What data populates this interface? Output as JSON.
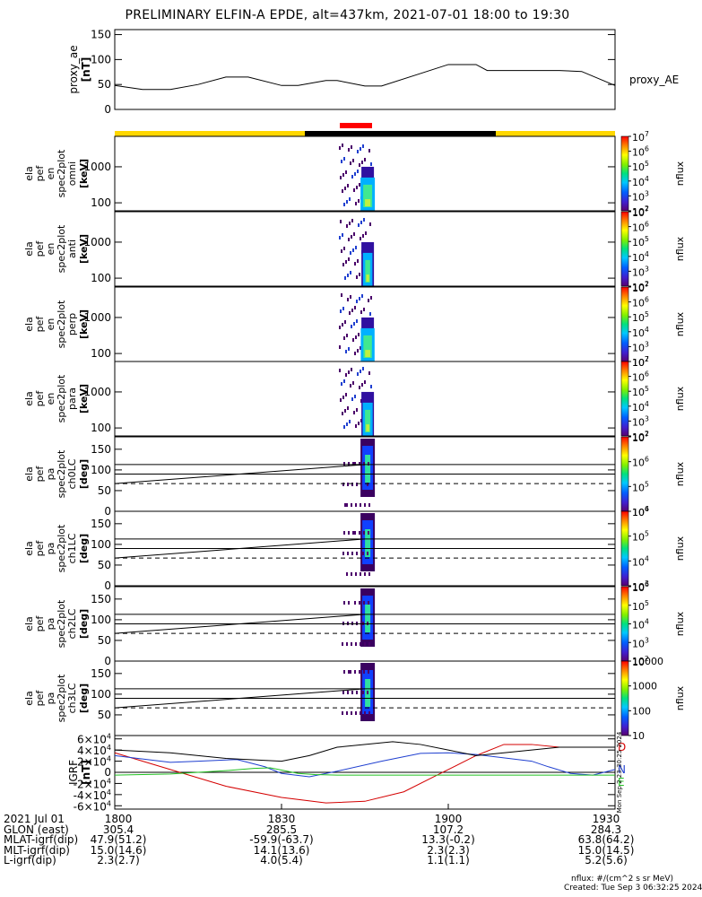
{
  "title": "PRELIMINARY ELFIN-A EPDE, alt=437km, 2021-07-01 18:00 to 19:30",
  "colors": {
    "sci_zone_bar": "#ffd700",
    "eclipse_bar": "#000000",
    "burst_bar": "#ff0000",
    "grf_d": "#d40000",
    "grf_n": "#1f3fd0",
    "grf_e": "#20c020"
  },
  "chart_data": [
    {
      "type": "line",
      "panel": "proxy_ae",
      "ylabel": [
        "proxy_ae",
        "[nT]"
      ],
      "ylim": [
        0,
        160
      ],
      "yticks": [
        0,
        50,
        100,
        150
      ],
      "series": [
        {
          "name": "proxy_AE",
          "x": [
            0,
            5,
            10,
            15,
            20,
            24,
            30,
            33,
            38,
            40,
            45,
            48,
            55,
            60,
            65,
            67,
            73,
            75,
            80,
            84,
            90
          ],
          "values": [
            48,
            40,
            40,
            50,
            65,
            65,
            48,
            48,
            58,
            58,
            47,
            47,
            72,
            90,
            90,
            78,
            78,
            78,
            78,
            76,
            48
          ]
        }
      ]
    },
    {
      "type": "heatmap",
      "panel": "spec2plot_omni",
      "ylabel": [
        "ela",
        "pef",
        "en",
        "spec2plot",
        "omni",
        "[keV]"
      ],
      "yscale": "log",
      "ylim": [
        60,
        7000
      ],
      "yticks": [
        "100",
        "1000"
      ],
      "zlabel": "nflux",
      "zlim": [
        "10^2",
        "10^7"
      ]
    },
    {
      "type": "heatmap",
      "panel": "spec2plot_anti",
      "ylabel": [
        "ela",
        "pef",
        "en",
        "spec2plot",
        "anti",
        "[keV]"
      ],
      "yscale": "log",
      "ylim": [
        60,
        7000
      ],
      "yticks": [
        "100",
        "1000"
      ],
      "zlabel": "nflux",
      "zlim": [
        "10^2",
        "10^7"
      ]
    },
    {
      "type": "heatmap",
      "panel": "spec2plot_perp",
      "ylabel": [
        "ela",
        "pef",
        "en",
        "spec2plot",
        "perp",
        "[keV]"
      ],
      "yscale": "log",
      "ylim": [
        60,
        7000
      ],
      "yticks": [
        "100",
        "1000"
      ],
      "zlabel": "nflux",
      "zlim": [
        "10^2",
        "10^7"
      ]
    },
    {
      "type": "heatmap",
      "panel": "spec2plot_para",
      "ylabel": [
        "ela",
        "pef",
        "en",
        "spec2plot",
        "para",
        "[keV]"
      ],
      "yscale": "log",
      "ylim": [
        60,
        7000
      ],
      "yticks": [
        "100",
        "1000"
      ],
      "zlabel": "nflux",
      "zlim": [
        "10^2",
        "10^7"
      ]
    },
    {
      "type": "heatmap",
      "panel": "spec2plot_ch0LC",
      "ylabel": [
        "ela",
        "pef",
        "pa",
        "spec2plot",
        "ch0LC",
        "[deg]"
      ],
      "ylim": [
        0,
        180
      ],
      "yticks": [
        "0",
        "50",
        "100",
        "150"
      ],
      "zlabel": "nflux",
      "zlim": [
        "10^4",
        "10^7"
      ]
    },
    {
      "type": "heatmap",
      "panel": "spec2plot_ch1LC",
      "ylabel": [
        "ela",
        "pef",
        "pa",
        "spec2plot",
        "ch1LC",
        "[deg]"
      ],
      "ylim": [
        0,
        180
      ],
      "yticks": [
        "0",
        "50",
        "100",
        "150"
      ],
      "zlabel": "nflux",
      "zlim": [
        "10^3",
        "10^6"
      ]
    },
    {
      "type": "heatmap",
      "panel": "spec2plot_ch2LC",
      "ylabel": [
        "ela",
        "pef",
        "pa",
        "spec2plot",
        "ch2LC",
        "[deg]"
      ],
      "ylim": [
        0,
        180
      ],
      "yticks": [
        "0",
        "50",
        "100",
        "150"
      ],
      "zlabel": "nflux",
      "zlim": [
        "10^2",
        "10^6"
      ]
    },
    {
      "type": "heatmap",
      "panel": "spec2plot_ch3LC",
      "ylabel": [
        "ela",
        "pef",
        "pa",
        "spec2plot",
        "ch3LC",
        "[deg]"
      ],
      "ylim": [
        0,
        180
      ],
      "yticks": [
        "50",
        "100",
        "150"
      ],
      "zlabel": "nflux",
      "zlim": [
        10,
        10000
      ]
    },
    {
      "type": "line",
      "panel": "IGRF",
      "ylabel": [
        "IGRF",
        "[nT]"
      ],
      "ylim": [
        -66000,
        66000
      ],
      "yticks": [
        "-6×10^4",
        "-4×10^4",
        "-2×10^4",
        "0",
        "2×10^4",
        "4×10^4",
        "6×10^4"
      ],
      "series": [
        {
          "name": "D",
          "x": [
            0,
            10,
            20,
            30,
            38,
            45,
            52,
            58,
            65,
            70,
            75,
            80,
            90
          ],
          "values": [
            35000,
            5000,
            -25000,
            -45000,
            -55000,
            -52000,
            -35000,
            -5000,
            30000,
            50000,
            50000,
            45000,
            45000
          ]
        },
        {
          "name": "N",
          "x": [
            0,
            5,
            10,
            15,
            22,
            27,
            30,
            35,
            40,
            48,
            55,
            60,
            65,
            70,
            75,
            78,
            82,
            86,
            90
          ],
          "values": [
            30000,
            24000,
            18000,
            20000,
            23000,
            10000,
            -2000,
            -8000,
            2000,
            20000,
            34000,
            35000,
            32000,
            26000,
            20000,
            10000,
            -2000,
            -5000,
            5000
          ]
        },
        {
          "name": "E",
          "x": [
            0,
            10,
            20,
            25,
            28,
            33,
            36,
            40,
            50,
            60,
            70,
            80,
            90
          ],
          "values": [
            -5000,
            -3000,
            3000,
            7000,
            8000,
            -2000,
            -4000,
            -5000,
            -5000,
            -5000,
            -5000,
            -5000,
            -5000
          ]
        },
        {
          "name": "",
          "x": [
            0,
            10,
            20,
            30,
            35,
            40,
            50,
            55,
            60,
            65,
            70,
            80,
            90
          ],
          "values": [
            40000,
            35000,
            25000,
            20000,
            30000,
            45000,
            55000,
            50000,
            40000,
            30000,
            35000,
            45000,
            45000
          ]
        }
      ],
      "side_text": "Mon Sep  2 23:30:25 2024"
    }
  ],
  "ephemeris": {
    "row_labels": [
      "2021 Jul 01",
      "GLON (east)",
      "MLAT-igrf(dip)",
      "MLT-igrf(dip)",
      "L-igrf(dip)"
    ],
    "columns": [
      {
        "x_min": 0,
        "values": [
          "1800",
          "305.4",
          "47.9(51.2)",
          "15.0(14.6)",
          "2.3(2.7)"
        ]
      },
      {
        "x_min": 30,
        "values": [
          "1830",
          "285.5",
          "-59.9(-63.7)",
          "14.1(13.6)",
          "4.0(5.4)"
        ]
      },
      {
        "x_min": 60,
        "values": [
          "1900",
          "107.2",
          "13.3(-0.2)",
          "2.3(2.3)",
          "1.1(1.1)"
        ]
      },
      {
        "x_min": 90,
        "values": [
          "1930",
          "284.3",
          "63.8(64.2)",
          "15.0(14.5)",
          "5.2(5.6)"
        ]
      }
    ]
  },
  "footer": {
    "units": "nflux: #/(cm^2 s sr MeV)",
    "created": "Created: Tue Sep  3 06:32:25 2024"
  }
}
